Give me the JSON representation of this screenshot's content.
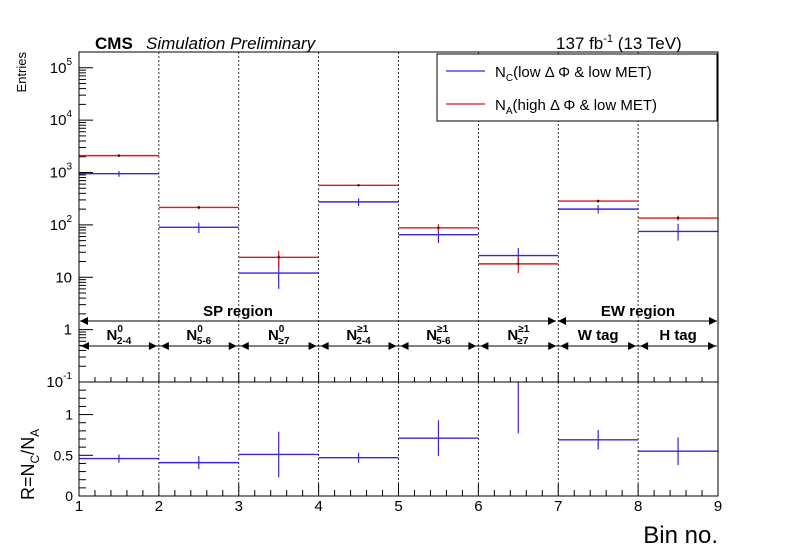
{
  "header": {
    "cms": "CMS",
    "simulation": "Simulation Preliminary",
    "lumi_value": "137 fb",
    "lumi_exp": "-1",
    "energy": "(13 TeV)"
  },
  "colors": {
    "nc": "#3b22e6",
    "na": "#e81414",
    "frame": "#000000"
  },
  "chart_data": [
    {
      "type": "line",
      "panel": "top",
      "y_scale": "log",
      "ylabel": "Entries",
      "ylim": [
        0.1,
        200000
      ],
      "y_ticklabels": [
        {
          "base": "10",
          "exp": "-1",
          "value": 0.1
        },
        {
          "base": "1",
          "exp": "",
          "value": 1
        },
        {
          "base": "10",
          "exp": "",
          "value": 10
        },
        {
          "base": "10",
          "exp": "2",
          "value": 100
        },
        {
          "base": "10",
          "exp": "3",
          "value": 1000
        },
        {
          "base": "10",
          "exp": "4",
          "value": 10000
        },
        {
          "base": "10",
          "exp": "5",
          "value": 100000
        }
      ],
      "x_bins": [
        1,
        2,
        3,
        4,
        5,
        6,
        7,
        8,
        9
      ],
      "series": [
        {
          "name_main": "N",
          "name_sub": "C",
          "name_rest": "(low Δ Φ & low MET)",
          "values": [
            950,
            90,
            12,
            275,
            65,
            26,
            200,
            75
          ],
          "err_up": [
            120,
            20,
            15,
            45,
            30,
            10,
            40,
            30
          ],
          "err_down": [
            120,
            20,
            6,
            45,
            20,
            8,
            35,
            25
          ]
        },
        {
          "name_main": "N",
          "name_sub": "A",
          "name_rest": "(high Δ Φ & low MET)",
          "values": [
            2100,
            215,
            24,
            570,
            88,
            18,
            285,
            135
          ],
          "err_up": [
            60,
            15,
            8,
            20,
            15,
            6,
            20,
            15
          ],
          "err_down": [
            60,
            15,
            8,
            20,
            15,
            6,
            20,
            15
          ]
        }
      ],
      "annotations": {
        "sp_region": "SP region",
        "ew_region": "EW region",
        "bin_labels": [
          {
            "main": "N",
            "sup": "0",
            "sub": "2-4"
          },
          {
            "main": "N",
            "sup": "0",
            "sub": "5-6"
          },
          {
            "main": "N",
            "sup": "0",
            "sub": "≥7"
          },
          {
            "main": "N",
            "sup": "≥1",
            "sub": "2-4"
          },
          {
            "main": "N",
            "sup": "≥1",
            "sub": "5-6"
          },
          {
            "main": "N",
            "sup": "≥1",
            "sub": "≥7"
          },
          {
            "main": "W tag",
            "sup": "",
            "sub": ""
          },
          {
            "main": "H tag",
            "sup": "",
            "sub": ""
          }
        ]
      }
    },
    {
      "type": "line",
      "panel": "ratio",
      "ylabel": "R=N",
      "ylabel_parts": {
        "r1": "R=N",
        "s1": "C",
        "r2": "/N",
        "s2": "A"
      },
      "ylim": [
        0,
        1.4
      ],
      "y_ticklabels": [
        "0",
        "0.5",
        "1"
      ],
      "x_ticklabels": [
        "1",
        "2",
        "3",
        "4",
        "5",
        "6",
        "7",
        "8",
        "9"
      ],
      "xlabel": "Bin no.",
      "series": [
        {
          "values": [
            0.46,
            0.41,
            0.51,
            0.47,
            0.71,
            1.45,
            0.69,
            0.55
          ],
          "err": [
            0.05,
            0.08,
            0.28,
            0.06,
            0.22,
            0.68,
            0.12,
            0.17
          ]
        }
      ]
    }
  ]
}
